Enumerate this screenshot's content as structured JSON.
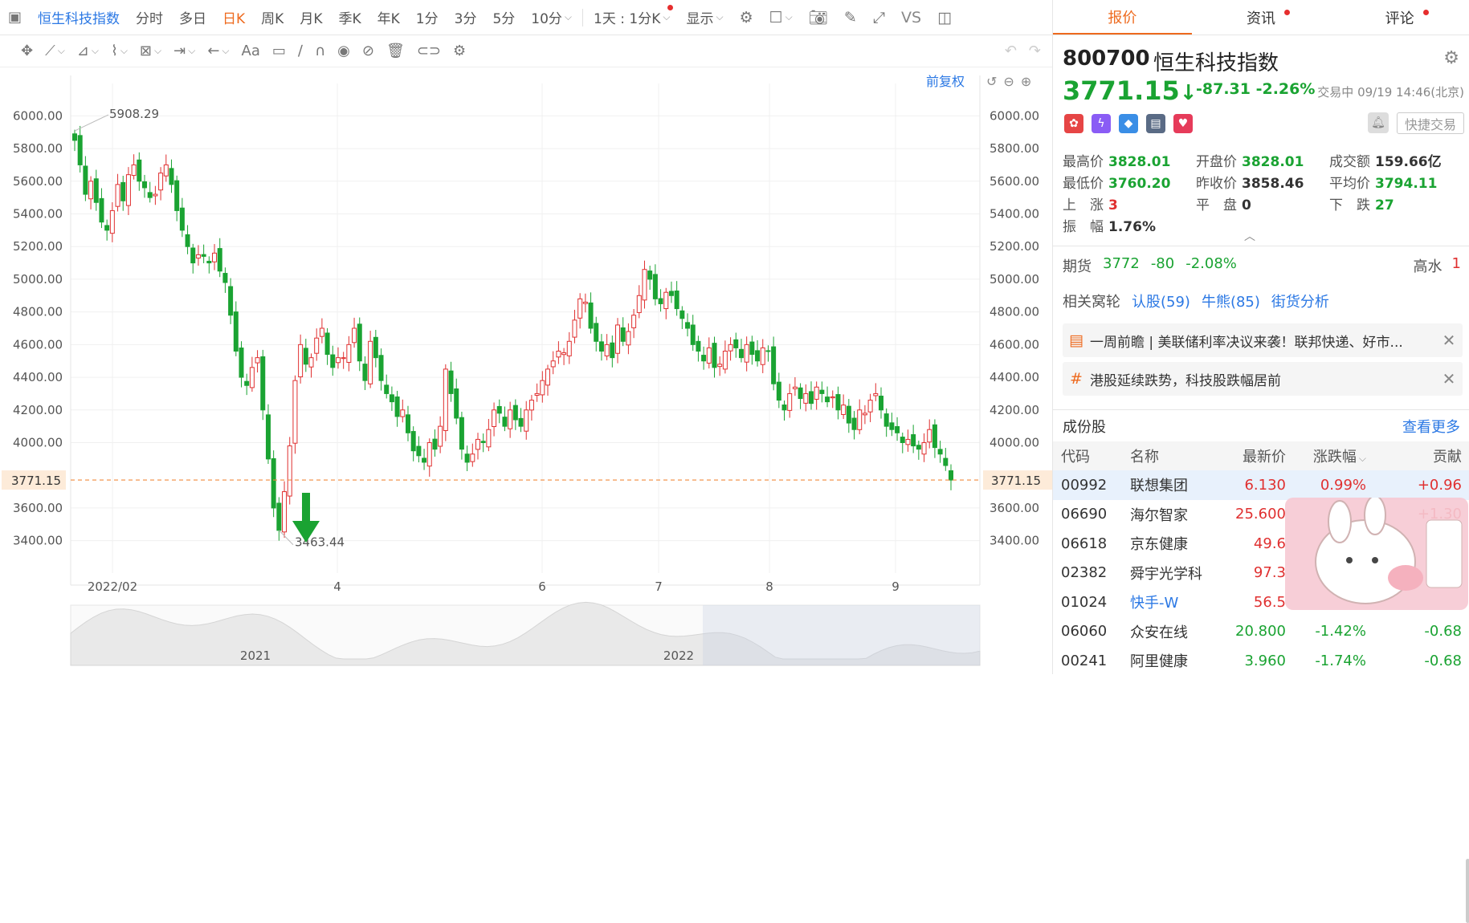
{
  "topbar": {
    "title": "恒生科技指数",
    "tabs": [
      "分时",
      "多日",
      "日K",
      "周K",
      "月K",
      "季K",
      "年K",
      "1分",
      "3分",
      "5分",
      "10分"
    ],
    "active_tab": "日K",
    "period_select": "1天 : 1分K",
    "display": "显示",
    "vs": "VS"
  },
  "toolbar": {
    "icons": [
      "move-icon",
      "line-tool-icon",
      "channel-tool-icon",
      "wave-tool-icon",
      "fib-tool-icon",
      "measure-tool-icon",
      "arrow-tool-icon",
      "text-tool-icon",
      "note-tool-icon",
      "pen-tool-icon",
      "magnet-icon",
      "eye-icon",
      "hide-icon",
      "trash-icon",
      "link-icon",
      "settings-icon"
    ],
    "text_tool": "Aa"
  },
  "chart": {
    "fuquan": "前复权",
    "y_labels": [
      "6000.00",
      "5800.00",
      "5600.00",
      "5400.00",
      "5200.00",
      "5000.00",
      "4800.00",
      "4600.00",
      "4400.00",
      "4200.00",
      "4000.00",
      "3771.15",
      "3600.00",
      "3400.00"
    ],
    "current_price": "3771.15",
    "high_label": "5908.29",
    "low_label": "3463.44",
    "x_labels": [
      "2022/02",
      "4",
      "6",
      "7",
      "8",
      "9"
    ],
    "nav_labels": [
      "2021",
      "2022"
    ],
    "colors": {
      "up": "#e03030",
      "down": "#1aa332",
      "current": "#f08a3c"
    }
  },
  "chart_data": {
    "type": "candlestick",
    "ylim": [
      3300,
      6100
    ],
    "current": 3771.15,
    "max": 5908.29,
    "min": 3463.44,
    "closes": [
      5850,
      5700,
      5520,
      5600,
      5470,
      5350,
      5300,
      5420,
      5580,
      5480,
      5640,
      5700,
      5600,
      5560,
      5500,
      5520,
      5650,
      5700,
      5580,
      5420,
      5300,
      5200,
      5100,
      5150,
      5140,
      5100,
      5160,
      5050,
      4980,
      4780,
      4560,
      4400,
      4350,
      4460,
      4520,
      4200,
      3900,
      3600,
      3463,
      3700,
      3980,
      4380,
      4600,
      4480,
      4520,
      4640,
      4700,
      4540,
      4460,
      4520,
      4520,
      4600,
      4700,
      4500,
      4380,
      4620,
      4520,
      4380,
      4300,
      4250,
      4160,
      4200,
      4060,
      3950,
      3920,
      3880,
      4000,
      3960,
      4100,
      4450,
      4300,
      4150,
      3960,
      3880,
      3930,
      4020,
      4000,
      4080,
      4200,
      4180,
      4100,
      4200,
      4140,
      4100,
      4200,
      4260,
      4300,
      4380,
      4450,
      4500,
      4560,
      4550,
      4620,
      4750,
      4880,
      4860,
      4700,
      4620,
      4560,
      4600,
      4520,
      4720,
      4620,
      4680,
      4780,
      4900,
      5060,
      5000,
      4880,
      4850,
      4920,
      4900,
      4820,
      4760,
      4700,
      4600,
      4560,
      4500,
      4580,
      4460,
      4480,
      4560,
      4600,
      4580,
      4520,
      4600,
      4540,
      4500,
      4580,
      4560,
      4360,
      4260,
      4200,
      4300,
      4340,
      4270,
      4300,
      4240,
      4340,
      4300,
      4250,
      4280,
      4200,
      4230,
      4120,
      4080,
      4200,
      4180,
      4260,
      4300,
      4200,
      4100,
      4080,
      4060,
      4000,
      4020,
      3980,
      3960,
      4000,
      4080,
      3970,
      3930,
      3860,
      3771
    ]
  },
  "quote": {
    "tabs": [
      "报价",
      "资讯",
      "评论"
    ],
    "code": "800700",
    "name": "恒生科技指数",
    "price": "3771.15",
    "arrow": "↓",
    "change": "-87.31",
    "change_pct": "-2.26%",
    "trade_time": "交易中 09/19 14:46(北京)",
    "quick_trade": "快捷交易",
    "stats": [
      [
        "最高价",
        "3828.01",
        "g"
      ],
      [
        "开盘价",
        "3828.01",
        "g"
      ],
      [
        "成交额",
        "159.66亿",
        "k"
      ],
      [
        "最低价",
        "3760.20",
        "g"
      ],
      [
        "昨收价",
        "3858.46",
        "k"
      ],
      [
        "平均价",
        "3794.11",
        "g"
      ],
      [
        "上　涨",
        "3",
        "r"
      ],
      [
        "平　盘",
        "0",
        "k"
      ],
      [
        "下　跌",
        "27",
        "g"
      ],
      [
        "振　幅",
        "1.76%",
        "k"
      ]
    ],
    "futures": {
      "label": "期货",
      "price": "3772",
      "chg": "-80",
      "pct": "-2.08%",
      "gaoshui_label": "高水",
      "gaoshui": "1"
    },
    "related": {
      "label": "相关窝轮",
      "items": [
        "认股(59)",
        "牛熊(85)",
        "街货分析"
      ]
    },
    "news": [
      "一周前瞻 | 美联储利率决议来袭！联邦快递、好市...",
      "港股延续跌势，科技股跌幅居前"
    ]
  },
  "constituents": {
    "title": "成份股",
    "more": "查看更多",
    "headers": [
      "代码",
      "名称",
      "最新价",
      "涨跌幅",
      "贡献"
    ],
    "rows": [
      [
        "00992",
        "联想集团",
        "6.130",
        "0.99%",
        "+0.96"
      ],
      [
        "06690",
        "海尔智家",
        "25.600",
        "",
        "+1.30"
      ],
      [
        "06618",
        "京东健康",
        "49.6",
        "",
        ""
      ],
      [
        "02382",
        "舜宇光学科",
        "97.3",
        "",
        ""
      ],
      [
        "01024",
        "快手-W",
        "56.5",
        "",
        ""
      ],
      [
        "06060",
        "众安在线",
        "20.800",
        "-1.42%",
        "-0.68"
      ],
      [
        "00241",
        "阿里健康",
        "3.960",
        "-1.74%",
        "-0.68"
      ]
    ]
  }
}
